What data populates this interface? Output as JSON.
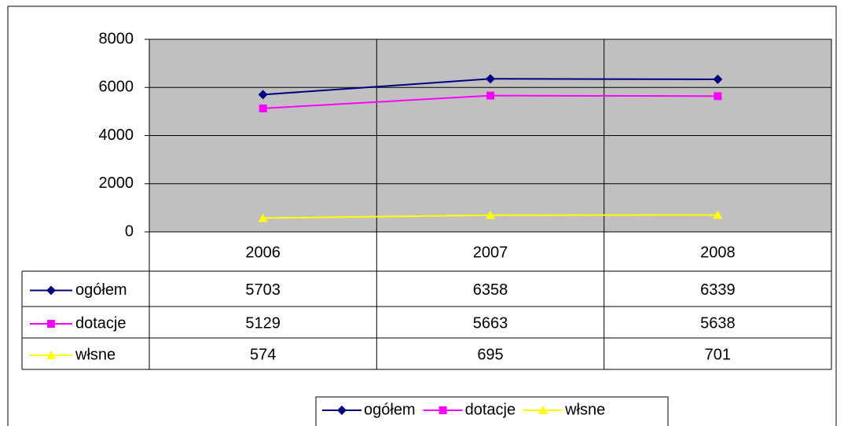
{
  "chart_data": {
    "type": "line",
    "categories": [
      "2006",
      "2007",
      "2008"
    ],
    "series": [
      {
        "name": "ogółem",
        "color": "#000080",
        "marker": "diamond",
        "values": [
          5703,
          6358,
          6339
        ]
      },
      {
        "name": "dotacje",
        "color": "#ff00ff",
        "marker": "square",
        "values": [
          5129,
          5663,
          5638
        ]
      },
      {
        "name": "włsne",
        "color": "#ffff00",
        "marker": "triangle",
        "values": [
          574,
          695,
          701
        ]
      }
    ],
    "ylim": [
      0,
      8000
    ],
    "yticks": [
      0,
      2000,
      4000,
      6000,
      8000
    ],
    "grid": true,
    "legend": "bottom"
  }
}
